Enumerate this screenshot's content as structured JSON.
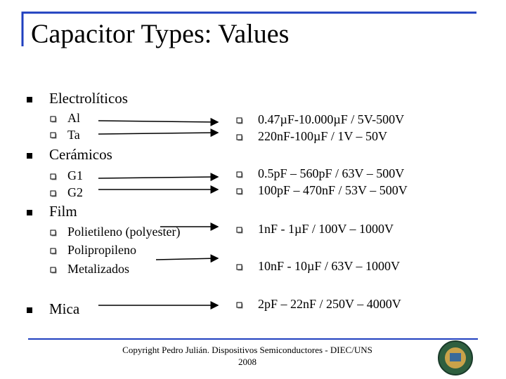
{
  "title": "Capacitor Types: Values",
  "sections": [
    {
      "label": "Electrolíticos",
      "items": [
        "Al",
        "Ta"
      ],
      "specs": [
        "0.47µF-10.000µF / 5V-500V",
        "220nF-100µF / 1V – 50V"
      ]
    },
    {
      "label": "Cerámicos",
      "items": [
        "G1",
        "G2"
      ],
      "specs": [
        "0.5pF – 560pF / 63V – 500V",
        "100pF – 470nF / 53V – 500V"
      ]
    },
    {
      "label": "Film",
      "items": [
        "Polietileno (polyester)",
        "Polipropileno",
        "Metalizados"
      ],
      "specs": [
        "1nF - 1µF / 100V – 1000V",
        "10nF - 10µF / 63V – 1000V"
      ]
    },
    {
      "label": "Mica",
      "items": [],
      "specs": [
        "2pF – 22nF / 250V – 4000V"
      ]
    }
  ],
  "footer": {
    "line1": "Copyright Pedro Julián. Dispositivos Semiconductores - DIEC/UNS",
    "line2": "2008"
  }
}
